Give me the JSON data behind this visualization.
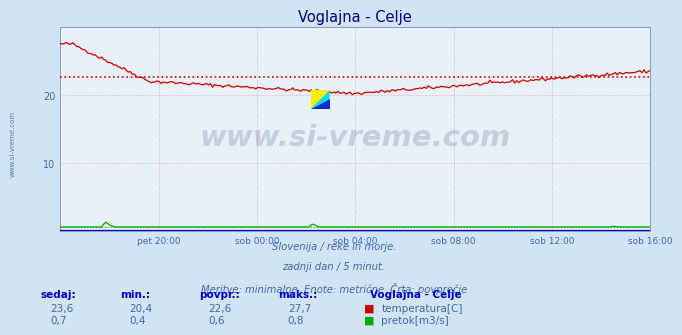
{
  "title": "Voglajna - Celje",
  "bg_color": "#d0e4f4",
  "plot_bg_color": "#e8f0f8",
  "title_color": "#000080",
  "axis_label_color": "#4466aa",
  "text_color": "#4466aa",
  "ylim": [
    0,
    30
  ],
  "yticks": [
    10,
    20
  ],
  "xlabel_ticks": [
    "pet 20:00",
    "sob 00:00",
    "sob 04:00",
    "sob 08:00",
    "sob 12:00",
    "sob 16:00"
  ],
  "n_points": 288,
  "temp_avg": 22.6,
  "flow_base": 0.6,
  "temp_color": "#cc0000",
  "flow_color": "#00aa00",
  "height_color": "#0000cc",
  "watermark_text": "www.si-vreme.com",
  "watermark_color": "#1a3a6a",
  "watermark_alpha": 0.18,
  "footer_line1": "Slovenija / reke in morje.",
  "footer_line2": "zadnji dan / 5 minut.",
  "footer_line3": "Meritve: minimalne  Enote: metrične  Črta: povprečje",
  "table_headers": [
    "sedaj:",
    "min.:",
    "povpr.:",
    "maks.:"
  ],
  "table_header_color": "#0000cc",
  "temp_row": [
    "23,6",
    "20,4",
    "22,6",
    "27,7"
  ],
  "flow_row": [
    "0,7",
    "0,4",
    "0,6",
    "0,8"
  ],
  "station_label": "Voglajna - Celje",
  "legend_temp": "temperatura[C]",
  "legend_flow": "pretok[m3/s]",
  "ylabel_text": "www.si-vreme.com",
  "ylabel_color": "#4466aa"
}
